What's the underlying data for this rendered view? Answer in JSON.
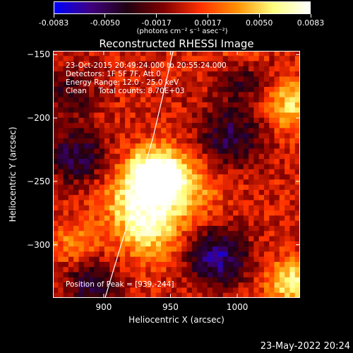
{
  "colorbar": {
    "tick_labels": [
      "-0.0083",
      "-0.0050",
      "-0.0017",
      "0.0017",
      "0.0050",
      "0.0083"
    ],
    "units": "(photons cm⁻² s⁻¹ asec⁻²)",
    "range": [
      -0.0083,
      0.0083
    ],
    "colors": [
      "#0000ff",
      "#400080",
      "#200010",
      "#800000",
      "#ff3000",
      "#ff9000",
      "#ffff80",
      "#ffffff"
    ]
  },
  "info": {
    "line1": "23-Oct-2015 20:49:24.000 to 20:55:24.000",
    "line2": "Detectors: 1F 5F 7F, Att 0",
    "line3": "Energy Range: 12.0 - 25.0 keV",
    "line4": "Clean     Total counts: 8.70E+03",
    "peak": "Position of Peak = [939,-244]"
  },
  "footer_date": "23-May-2022 20:24",
  "chart_data": {
    "type": "heatmap",
    "title": "Reconstructed RHESSI Image",
    "xlabel": "Heliocentric X (arcsec)",
    "ylabel": "Heliocentric Y (arcsec)",
    "xlim": [
      862,
      1047
    ],
    "ylim": [
      -342,
      -147
    ],
    "x_ticks": [
      900,
      950,
      1000
    ],
    "y_ticks": [
      -150,
      -200,
      -250,
      -300
    ],
    "x_tick_labels": [
      "900",
      "950",
      "1000"
    ],
    "y_tick_labels": [
      "-150",
      "-200",
      "-250",
      "-300"
    ],
    "peak_position": [
      939,
      -244
    ],
    "limb_curve": [
      [
        901,
        -342
      ],
      [
        913,
        -300
      ],
      [
        925,
        -260
      ],
      [
        937,
        -215
      ],
      [
        947,
        -170
      ],
      [
        952,
        -147
      ]
    ],
    "bright_sources": [
      {
        "x": 939,
        "y": -244,
        "amplitude": 1.0,
        "width": 14
      },
      {
        "x": 925,
        "y": -265,
        "amplitude": 0.6,
        "width": 18
      },
      {
        "x": 935,
        "y": -290,
        "amplitude": 0.55,
        "width": 16
      },
      {
        "x": 960,
        "y": -255,
        "amplitude": 0.5,
        "width": 18
      },
      {
        "x": 1040,
        "y": -190,
        "amplitude": 0.6,
        "width": 14
      },
      {
        "x": 1040,
        "y": -330,
        "amplitude": 0.7,
        "width": 12
      },
      {
        "x": 1005,
        "y": -150,
        "amplitude": 0.45,
        "width": 12
      },
      {
        "x": 880,
        "y": -300,
        "amplitude": 0.4,
        "width": 12
      }
    ],
    "dark_sources": [
      {
        "x": 880,
        "y": -230,
        "amplitude": -0.6,
        "width": 16
      },
      {
        "x": 995,
        "y": -215,
        "amplitude": -0.6,
        "width": 18
      },
      {
        "x": 985,
        "y": -310,
        "amplitude": -0.8,
        "width": 16
      },
      {
        "x": 890,
        "y": -330,
        "amplitude": -0.6,
        "width": 14
      },
      {
        "x": 1005,
        "y": -165,
        "amplitude": -0.5,
        "width": 14
      },
      {
        "x": 875,
        "y": -180,
        "amplitude": -0.4,
        "width": 14
      }
    ]
  }
}
